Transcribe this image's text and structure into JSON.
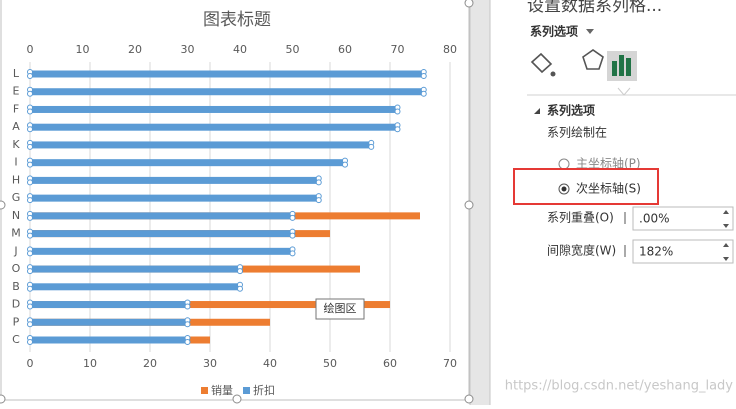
{
  "chart_data": {
    "type": "bar",
    "orientation": "horizontal",
    "title": "图表标题",
    "categories": [
      "L",
      "E",
      "F",
      "A",
      "K",
      "I",
      "H",
      "G",
      "N",
      "M",
      "J",
      "O",
      "B",
      "D",
      "P",
      "C"
    ],
    "series": [
      {
        "name": "销量",
        "color": "#ed7d31",
        "axis": "x",
        "values": [
          null,
          null,
          null,
          null,
          null,
          null,
          null,
          null,
          65,
          50,
          null,
          55,
          null,
          60,
          40,
          30
        ]
      },
      {
        "name": "折扣",
        "color": "#5b9bd5",
        "axis": "x2",
        "values": [
          75,
          75,
          70,
          70,
          65,
          60,
          55,
          55,
          50,
          50,
          50,
          40,
          40,
          30,
          30,
          30
        ]
      }
    ],
    "xlim": [
      0,
      70
    ],
    "xticks": [
      0,
      10,
      20,
      30,
      40,
      50,
      60,
      70
    ],
    "x2lim": [
      0,
      80
    ],
    "x2ticks": [
      0,
      10,
      20,
      30,
      40,
      50,
      60,
      70,
      80
    ],
    "grid": true,
    "legend": "bottom",
    "tooltip": "绘图区"
  },
  "pane": {
    "title": "设置数据系列格...",
    "tab": "系列选项",
    "section": "系列选项",
    "plot_on": "系列绘制在",
    "primary": "主坐标轴(P)",
    "secondary": "次坐标轴(S)",
    "overlap_label": "系列重叠(O)",
    "overlap_value": ".00%",
    "gap_label": "间隙宽度(W)",
    "gap_value": "182%"
  },
  "watermark": "https://blog.csdn.net/yeshang_lady"
}
